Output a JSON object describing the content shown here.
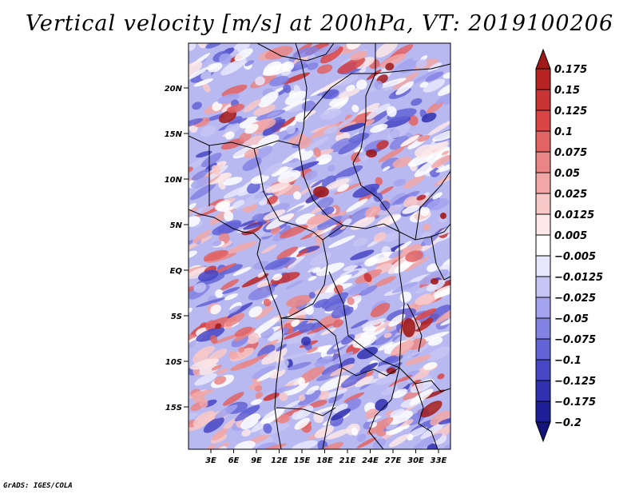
{
  "title": "Vertical velocity [m/s] at 200hPa, VT: 2019100206",
  "credit": "GrADS: IGES/COLA",
  "map": {
    "lat_labels": [
      "20N",
      "15N",
      "10N",
      "5N",
      "EQ",
      "5S",
      "10S",
      "15S"
    ],
    "lon_labels": [
      "3E",
      "6E",
      "9E",
      "12E",
      "15E",
      "18E",
      "21E",
      "24E",
      "27E",
      "30E",
      "33E"
    ]
  },
  "colorbar": {
    "labels": [
      "0.175",
      "0.15",
      "0.125",
      "0.1",
      "0.075",
      "0.05",
      "0.025",
      "0.0125",
      "0.005",
      "−0.005",
      "−0.0125",
      "−0.025",
      "−0.05",
      "−0.075",
      "−0.1",
      "−0.125",
      "−0.175",
      "−0.2"
    ],
    "colors": [
      "#a01a1a",
      "#b72323",
      "#c83333",
      "#d94545",
      "#e26363",
      "#ea8585",
      "#f2a7a7",
      "#f8c8c8",
      "#fde8e8",
      "#ffffff",
      "#e8e8fd",
      "#c4c4f5",
      "#a3a3ee",
      "#8282e3",
      "#6363d6",
      "#4747c6",
      "#3030b0",
      "#1e1e96",
      "#14147a"
    ]
  }
}
